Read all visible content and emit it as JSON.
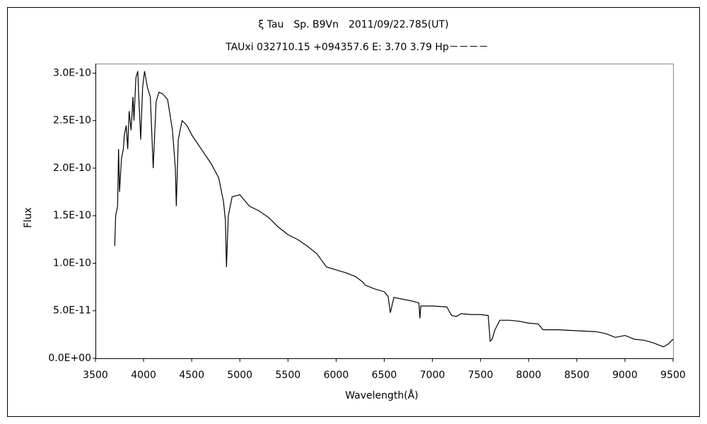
{
  "chart_data": {
    "type": "line",
    "title": "ξ Tau　Sp. B9Vn　2011/09/22.785(UT)",
    "subtitle": "TAUxi 032710.15 +094357.6 E: 3.70 3.79 Hp－－－－",
    "xlabel": "Wavelength(Å)",
    "ylabel": "Flux",
    "xlim": [
      3500,
      9500
    ],
    "xticks": [
      3500,
      4000,
      4500,
      5000,
      5500,
      6000,
      6500,
      7000,
      7500,
      8000,
      8500,
      9000,
      9500
    ],
    "ylim": [
      0,
      3.1e-10
    ],
    "yticks": [
      {
        "value": 0,
        "label": "0.0E+00"
      },
      {
        "value": 5e-11,
        "label": "5.0E-11"
      },
      {
        "value": 1e-10,
        "label": "1.0E-10"
      },
      {
        "value": 1.5e-10,
        "label": "1.5E-10"
      },
      {
        "value": 2e-10,
        "label": "2.0E-10"
      },
      {
        "value": 2.5e-10,
        "label": "2.5E-10"
      },
      {
        "value": 3e-10,
        "label": "3.0E-10"
      }
    ],
    "color": "#000000",
    "x": [
      3700,
      3710,
      3730,
      3740,
      3750,
      3770,
      3790,
      3800,
      3820,
      3835,
      3850,
      3870,
      3890,
      3900,
      3920,
      3940,
      3950,
      3970,
      3990,
      4010,
      4040,
      4070,
      4100,
      4130,
      4160,
      4200,
      4250,
      4300,
      4330,
      4340,
      4360,
      4400,
      4450,
      4500,
      4600,
      4700,
      4780,
      4830,
      4850,
      4861,
      4880,
      4920,
      5000,
      5100,
      5200,
      5300,
      5400,
      5500,
      5600,
      5700,
      5800,
      5850,
      5900,
      6000,
      6100,
      6200,
      6280,
      6300,
      6400,
      6500,
      6540,
      6563,
      6600,
      6700,
      6800,
      6860,
      6870,
      6880,
      7000,
      7150,
      7200,
      7250,
      7300,
      7400,
      7500,
      7580,
      7600,
      7620,
      7650,
      7700,
      7800,
      7900,
      8000,
      8100,
      8150,
      8300,
      8500,
      8700,
      8800,
      8900,
      9000,
      9100,
      9200,
      9300,
      9400,
      9450,
      9500
    ],
    "values": [
      1.18e-10,
      1.5e-10,
      1.6e-10,
      2.2e-10,
      1.75e-10,
      2.1e-10,
      2.2e-10,
      2.35e-10,
      2.45e-10,
      2.2e-10,
      2.6e-10,
      2.4e-10,
      2.75e-10,
      2.5e-10,
      2.95e-10,
      3.02e-10,
      2.75e-10,
      2.3e-10,
      2.85e-10,
      3.02e-10,
      2.85e-10,
      2.75e-10,
      2e-10,
      2.7e-10,
      2.8e-10,
      2.78e-10,
      2.72e-10,
      2.4e-10,
      2e-10,
      1.6e-10,
      2.3e-10,
      2.5e-10,
      2.45e-10,
      2.35e-10,
      2.2e-10,
      2.05e-10,
      1.9e-10,
      1.65e-10,
      1.45e-10,
      9.6e-11,
      1.5e-10,
      1.7e-10,
      1.72e-10,
      1.6e-10,
      1.55e-10,
      1.48e-10,
      1.38e-10,
      1.3e-10,
      1.25e-10,
      1.18e-10,
      1.1e-10,
      1.03e-10,
      9.6e-11,
      9.3e-11,
      9e-11,
      8.6e-11,
      8e-11,
      7.7e-11,
      7.3e-11,
      7e-11,
      6.5e-11,
      4.8e-11,
      6.4e-11,
      6.2e-11,
      6e-11,
      5.8e-11,
      4.2e-11,
      5.5e-11,
      5.5e-11,
      5.4e-11,
      4.5e-11,
      4.4e-11,
      4.7e-11,
      4.6e-11,
      4.6e-11,
      4.5e-11,
      1.8e-11,
      2e-11,
      3e-11,
      4e-11,
      4e-11,
      3.9e-11,
      3.7e-11,
      3.6e-11,
      3e-11,
      3e-11,
      2.9e-11,
      2.8e-11,
      2.6e-11,
      2.2e-11,
      2.4e-11,
      2e-11,
      1.9e-11,
      1.6e-11,
      1.2e-11,
      1.5e-11,
      2e-11
    ]
  }
}
